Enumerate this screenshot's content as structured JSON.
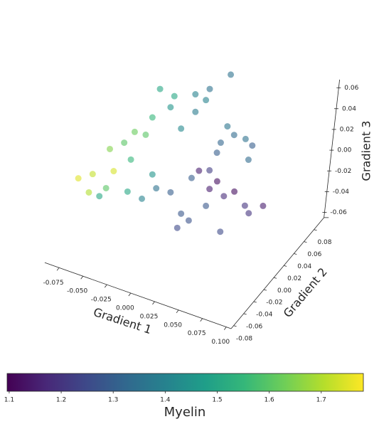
{
  "chart_data": {
    "type": "scatter3d",
    "xlabel": "Gradient 1",
    "ylabel": "Gradient 2",
    "zlabel": "Gradient 3",
    "colorbar_label": "Myelin",
    "xlim": [
      -0.09,
      0.105
    ],
    "ylim": [
      -0.085,
      0.1
    ],
    "zlim": [
      -0.065,
      0.068
    ],
    "xticks": [
      -0.075,
      {
        "value": -0.05,
        "label": "-0.050"
      },
      -0.025,
      {
        "value": 0,
        "label": "0.000"
      },
      0.025,
      {
        "value": 0.05,
        "label": "0.050"
      },
      0.075,
      {
        "value": 0.1,
        "label": "0.100"
      }
    ],
    "yticks": [
      -0.08,
      -0.06,
      -0.04,
      -0.02,
      {
        "value": 0,
        "label": "0.00"
      },
      0.02,
      0.04,
      0.06,
      0.08
    ],
    "zticks": [
      -0.06,
      -0.04,
      -0.02,
      {
        "value": 0,
        "label": "0.00"
      },
      0.02,
      0.04,
      0.06
    ],
    "clim": [
      1.096,
      1.781
    ],
    "cticks": [
      1.1,
      1.2,
      1.3,
      1.4,
      1.5,
      1.6,
      1.7
    ],
    "colormap": [
      "#440154",
      "#482878",
      "#3e4989",
      "#31688e",
      "#26828e",
      "#1f9e89",
      "#35b779",
      "#6ece58",
      "#b5de2b",
      "#fde725"
    ],
    "opacity": 0.6,
    "x": [
      -0.089,
      -0.074,
      -0.06,
      -0.078,
      -0.056,
      -0.041,
      -0.034,
      -0.03,
      -0.052,
      -0.067,
      -0.029,
      -0.035,
      -0.024,
      -0.043,
      0.002,
      0.017,
      0.018,
      0.013,
      0.002,
      -0.013,
      -0.02,
      0.032,
      0.044,
      0.051,
      0.018,
      0.025,
      0.014,
      0.047,
      -0.003,
      0.008,
      0.004,
      0.016,
      -0.018,
      -0.033,
      -0.048,
      0.019,
      -0.022,
      0.034,
      0.049,
      0.022,
      0.037,
      0.048,
      0.059,
      0.078,
      0.011,
      0.03,
      0.063,
      0.022
    ],
    "y": [
      -0.02,
      -0.02,
      -0.02,
      -0.02,
      -0.02,
      -0.02,
      -0.02,
      -0.02,
      -0.02,
      -0.02,
      0,
      0.04,
      0.04,
      0.04,
      0.04,
      0.04,
      0.08,
      0.04,
      0.04,
      0.04,
      0.04,
      0.06,
      0.06,
      0.06,
      0.06,
      0.06,
      0.06,
      0.06,
      0,
      0,
      0,
      0,
      0,
      0,
      0,
      0,
      0,
      0,
      0,
      0.03,
      0.03,
      0.03,
      0.03,
      0.03,
      0.03,
      0.03,
      0.03,
      0.03
    ],
    "z": [
      -0.021,
      -0.012,
      -0.021,
      -0.031,
      0.018,
      0.029,
      0.015,
      0.043,
      -0.002,
      -0.031,
      0.029,
      0.048,
      0.034,
      0.018,
      0.055,
      0.065,
      0.056,
      0.053,
      0.038,
      0.017,
      0.046,
      0.014,
      0.014,
      0.01,
      0.002,
      0.02,
      -0.009,
      -0.005,
      -0.018,
      -0.035,
      -0.05,
      -0.039,
      -0.019,
      -0.034,
      -0.032,
      0.003,
      -0.007,
      -0.019,
      -0.039,
      -0.024,
      -0.026,
      -0.018,
      -0.028,
      -0.022,
      -0.01,
      -0.014,
      -0.034,
      -0.006
    ],
    "c": [
      1.75,
      1.72,
      1.6,
      1.7,
      1.65,
      1.6,
      1.55,
      1.62,
      1.74,
      1.5,
      1.6,
      1.5,
      1.45,
      1.55,
      1.4,
      1.35,
      1.35,
      1.4,
      1.38,
      1.42,
      1.5,
      1.33,
      1.35,
      1.3,
      1.32,
      1.36,
      1.3,
      1.33,
      1.3,
      1.28,
      1.25,
      1.27,
      1.35,
      1.4,
      1.5,
      1.3,
      1.45,
      1.28,
      1.25,
      1.15,
      1.18,
      1.12,
      1.2,
      1.15,
      1.15,
      1.12,
      1.2,
      1.22
    ]
  }
}
